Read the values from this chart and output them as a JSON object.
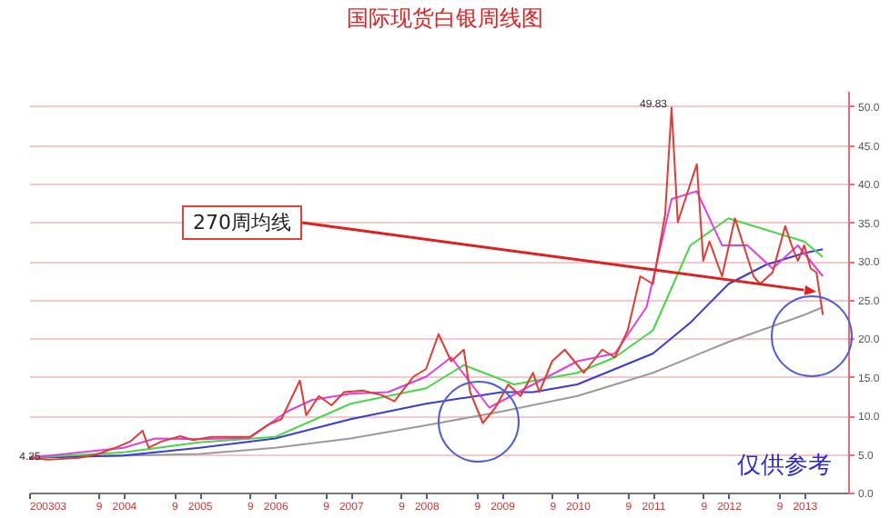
{
  "chart_data": {
    "type": "line",
    "title": "国际现货白银周线图",
    "xlim": [
      "2002-10",
      "2013-08"
    ],
    "xticks": [
      {
        "value": "2002-10",
        "label": "200303"
      },
      {
        "value": "2003-09",
        "label": "9"
      },
      {
        "value": "2004-01",
        "label": "2004"
      },
      {
        "value": "2004-09",
        "label": "9"
      },
      {
        "value": "2005-01",
        "label": "2005"
      },
      {
        "value": "2005-09",
        "label": "9"
      },
      {
        "value": "2006-01",
        "label": "2006"
      },
      {
        "value": "2006-09",
        "label": "9"
      },
      {
        "value": "2007-01",
        "label": "2007"
      },
      {
        "value": "2007-09",
        "label": "9"
      },
      {
        "value": "2008-01",
        "label": "2008"
      },
      {
        "value": "2008-09",
        "label": "9"
      },
      {
        "value": "2009-01",
        "label": "2009"
      },
      {
        "value": "2009-09",
        "label": "9"
      },
      {
        "value": "2010-01",
        "label": "2010"
      },
      {
        "value": "2010-09",
        "label": "9"
      },
      {
        "value": "2011-01",
        "label": "2011"
      },
      {
        "value": "2011-09",
        "label": "9"
      },
      {
        "value": "2012-01",
        "label": "2012"
      },
      {
        "value": "2012-09",
        "label": "9"
      },
      {
        "value": "2013-01",
        "label": "2013"
      }
    ],
    "ylim": [
      0,
      52
    ],
    "yticks": [
      {
        "value": 0,
        "label": "0.0"
      },
      {
        "value": 5,
        "label": "5.0"
      },
      {
        "value": 10,
        "label": "10.0"
      },
      {
        "value": 15,
        "label": "15.0"
      },
      {
        "value": 20,
        "label": "20.0"
      },
      {
        "value": 25,
        "label": "25.0"
      },
      {
        "value": 30,
        "label": "30.0"
      },
      {
        "value": 35,
        "label": "35.0"
      },
      {
        "value": 40,
        "label": "40.0"
      },
      {
        "value": 45,
        "label": "45.0"
      },
      {
        "value": 50,
        "label": "50.0"
      }
    ],
    "grid": "y",
    "legend": false,
    "series": [
      {
        "color": "#9a9a9a",
        "x": [
          "2002-10",
          "2005-01",
          "2006-01",
          "2007-01",
          "2008-01",
          "2009-01",
          "2010-01",
          "2011-01",
          "2012-01",
          "2013-01",
          "2013-04"
        ],
        "values": [
          4.5,
          5.0,
          5.8,
          7.0,
          8.7,
          10.5,
          12.5,
          15.5,
          19.5,
          23.0,
          24.0
        ]
      },
      {
        "color": "#3a3ad8",
        "x": [
          "2002-10",
          "2004-01",
          "2005-01",
          "2006-01",
          "2007-01",
          "2008-01",
          "2009-01",
          "2009-06",
          "2010-01",
          "2011-01",
          "2011-07",
          "2012-01",
          "2012-07",
          "2013-01",
          "2013-04"
        ],
        "values": [
          4.5,
          4.8,
          5.8,
          7.0,
          9.5,
          11.5,
          13.0,
          13.0,
          14.0,
          18.0,
          22.0,
          27.0,
          29.5,
          31.0,
          31.5
        ]
      },
      {
        "color": "#44d844",
        "x": [
          "2002-10",
          "2004-01",
          "2005-01",
          "2006-01",
          "2007-01",
          "2008-01",
          "2008-07",
          "2009-03",
          "2010-01",
          "2010-07",
          "2011-01",
          "2011-07",
          "2012-01",
          "2012-07",
          "2013-01",
          "2013-04"
        ],
        "values": [
          4.5,
          5.2,
          6.5,
          7.2,
          11.5,
          13.5,
          16.5,
          14.0,
          15.5,
          17.5,
          21.0,
          32.0,
          35.5,
          34.0,
          32.5,
          30.5
        ]
      },
      {
        "color": "#e040e0",
        "x": [
          "2002-10",
          "2004-01",
          "2004-06",
          "2005-01",
          "2005-09",
          "2006-03",
          "2006-07",
          "2007-01",
          "2007-07",
          "2008-01",
          "2008-05",
          "2008-11",
          "2009-06",
          "2010-01",
          "2010-07",
          "2010-12",
          "2011-04",
          "2011-08",
          "2011-12",
          "2012-04",
          "2012-08",
          "2012-12",
          "2013-04"
        ],
        "values": [
          4.5,
          5.8,
          7.0,
          6.9,
          7.1,
          10.5,
          12.0,
          12.8,
          13.0,
          15.0,
          17.5,
          11.0,
          14.0,
          17.0,
          18.0,
          24.0,
          38.0,
          39.0,
          32.0,
          32.0,
          29.0,
          32.0,
          28.0
        ]
      },
      {
        "color": "#e03c31",
        "x": [
          "2002-10",
          "2003-01",
          "2003-06",
          "2003-09",
          "2003-12",
          "2004-02",
          "2004-04",
          "2004-05",
          "2004-07",
          "2004-10",
          "2004-12",
          "2005-03",
          "2005-06",
          "2005-09",
          "2005-12",
          "2006-02",
          "2006-05",
          "2006-06",
          "2006-08",
          "2006-10",
          "2006-12",
          "2007-03",
          "2007-06",
          "2007-08",
          "2007-11",
          "2008-01",
          "2008-03",
          "2008-05",
          "2008-07",
          "2008-08",
          "2008-10",
          "2008-12",
          "2009-02",
          "2009-04",
          "2009-06",
          "2009-07",
          "2009-09",
          "2009-11",
          "2010-02",
          "2010-05",
          "2010-07",
          "2010-09",
          "2010-11",
          "2011-01",
          "2011-03",
          "2011-04",
          "2011-05",
          "2011-07",
          "2011-08",
          "2011-09",
          "2011-10",
          "2011-12",
          "2012-02",
          "2012-05",
          "2012-06",
          "2012-08",
          "2012-10",
          "2012-11",
          "2012-12",
          "2013-01",
          "2013-02",
          "2013-03",
          "2013-04"
        ],
        "values": [
          4.5,
          4.25,
          4.5,
          5.0,
          5.9,
          6.6,
          8.0,
          5.8,
          6.6,
          7.3,
          6.8,
          7.2,
          7.2,
          7.2,
          8.8,
          9.5,
          14.5,
          10.0,
          12.5,
          11.3,
          13.0,
          13.2,
          12.6,
          11.8,
          15.0,
          16.0,
          20.5,
          17.0,
          18.5,
          13.0,
          9.0,
          11.0,
          14.0,
          12.5,
          15.5,
          13.0,
          17.0,
          18.5,
          15.5,
          18.5,
          17.5,
          21.0,
          28.0,
          27.0,
          36.0,
          49.83,
          35.0,
          40.0,
          42.5,
          30.0,
          32.5,
          28.0,
          35.5,
          28.0,
          27.0,
          28.5,
          34.5,
          32.0,
          30.0,
          32.0,
          29.0,
          28.5,
          23.0
        ]
      }
    ],
    "annotations": [
      {
        "text": "270周均线",
        "x": "2013-03",
        "y": 26
      },
      {
        "text": "49.83",
        "x": "2011-04",
        "y": 49.83
      },
      {
        "text": "4.25",
        "x": "2003-01",
        "y": 4.25
      },
      "仅供参考"
    ]
  }
}
